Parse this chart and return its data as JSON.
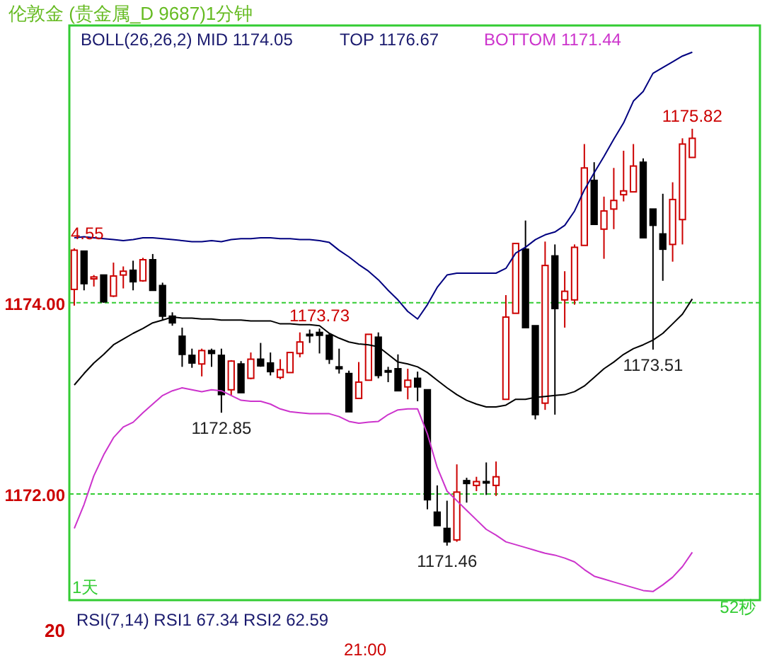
{
  "chart_data": {
    "type": "candlestick",
    "title": "伦敦金 (贵金属_D 9687)1分钟",
    "categories": [
      null,
      null,
      null,
      null,
      null,
      null,
      null,
      null,
      null,
      null,
      null,
      null,
      null,
      null,
      null,
      null,
      null,
      null,
      null,
      null,
      null,
      null,
      null,
      null,
      null,
      null,
      null,
      null,
      null,
      null,
      null,
      null,
      null,
      null,
      null,
      null,
      null,
      null,
      null,
      null,
      null,
      null,
      null,
      null,
      null,
      null,
      null,
      null,
      null,
      null,
      null,
      null,
      null,
      null,
      null,
      null,
      null,
      null,
      null,
      null,
      null,
      null,
      null,
      null
    ],
    "ohlc": [
      [
        1174.14,
        1174.57,
        1173.97,
        1174.55
      ],
      [
        1174.54,
        1174.54,
        1174.13,
        1174.2
      ],
      [
        1174.25,
        1174.29,
        1174.17,
        1174.27
      ],
      [
        1174.29,
        1174.29,
        1174.0,
        1174.01
      ],
      [
        1174.07,
        1174.42,
        1174.06,
        1174.28
      ],
      [
        1174.29,
        1174.38,
        1174.15,
        1174.33
      ],
      [
        1174.34,
        1174.44,
        1174.13,
        1174.22
      ],
      [
        1174.23,
        1174.47,
        1174.22,
        1174.45
      ],
      [
        1174.45,
        1174.51,
        1174.13,
        1174.13
      ],
      [
        1174.18,
        1174.21,
        1173.82,
        1173.86
      ],
      [
        1173.86,
        1173.9,
        1173.76,
        1173.79
      ],
      [
        1173.65,
        1173.74,
        1173.33,
        1173.46
      ],
      [
        1173.45,
        1173.52,
        1173.32,
        1173.37
      ],
      [
        1173.36,
        1173.52,
        1173.23,
        1173.5
      ],
      [
        1173.5,
        1173.52,
        1173.33,
        1173.47
      ],
      [
        1173.45,
        1173.52,
        1172.85,
        1173.04
      ],
      [
        1173.09,
        1173.4,
        1173.03,
        1173.39
      ],
      [
        1173.36,
        1173.39,
        1173.06,
        1173.06
      ],
      [
        1173.21,
        1173.48,
        1173.2,
        1173.41
      ],
      [
        1173.41,
        1173.58,
        1173.33,
        1173.34
      ],
      [
        1173.37,
        1173.48,
        1173.24,
        1173.28
      ],
      [
        1173.22,
        1173.41,
        1173.2,
        1173.3
      ],
      [
        1173.27,
        1173.48,
        1173.27,
        1173.48
      ],
      [
        1173.47,
        1173.69,
        1173.43,
        1173.59
      ],
      [
        1173.67,
        1173.72,
        1173.58,
        1173.66
      ],
      [
        1173.69,
        1173.73,
        1173.47,
        1173.66
      ],
      [
        1173.66,
        1173.68,
        1173.36,
        1173.41
      ],
      [
        1173.33,
        1173.52,
        1173.26,
        1173.31
      ],
      [
        1173.26,
        1173.29,
        1172.86,
        1172.86
      ],
      [
        1173.0,
        1173.38,
        1173.0,
        1173.17
      ],
      [
        1173.19,
        1173.67,
        1173.19,
        1173.67
      ],
      [
        1173.64,
        1173.69,
        1173.21,
        1173.24
      ],
      [
        1173.29,
        1173.33,
        1173.17,
        1173.28
      ],
      [
        1173.31,
        1173.46,
        1173.08,
        1173.08
      ],
      [
        1173.12,
        1173.31,
        1172.99,
        1173.19
      ],
      [
        1173.21,
        1173.28,
        1172.97,
        1173.12
      ],
      [
        1173.09,
        1173.09,
        1171.84,
        1171.94
      ],
      [
        1171.81,
        1172.09,
        1171.67,
        1171.67
      ],
      [
        1171.64,
        1171.93,
        1171.46,
        1171.5
      ],
      [
        1171.52,
        1172.31,
        1171.5,
        1172.02
      ],
      [
        1172.14,
        1172.17,
        1171.91,
        1172.11
      ],
      [
        1172.09,
        1172.18,
        1172.03,
        1172.13
      ],
      [
        1172.13,
        1172.33,
        1171.99,
        1172.12
      ],
      [
        1172.09,
        1172.34,
        1171.98,
        1172.18
      ],
      [
        1172.99,
        1174.08,
        1172.99,
        1173.85
      ],
      [
        1173.89,
        1174.62,
        1173.89,
        1174.62
      ],
      [
        1174.56,
        1174.86,
        1173.74,
        1173.74
      ],
      [
        1173.76,
        1173.76,
        1172.78,
        1172.83
      ],
      [
        1172.95,
        1174.64,
        1172.88,
        1174.39
      ],
      [
        1174.49,
        1174.61,
        1172.83,
        1173.94
      ],
      [
        1174.03,
        1174.33,
        1173.74,
        1174.12
      ],
      [
        1174.03,
        1174.61,
        1173.98,
        1174.58
      ],
      [
        1174.6,
        1175.66,
        1174.6,
        1175.41
      ],
      [
        1175.28,
        1175.47,
        1174.82,
        1174.82
      ],
      [
        1174.77,
        1175.11,
        1174.46,
        1174.96
      ],
      [
        1174.98,
        1175.41,
        1174.77,
        1175.07
      ],
      [
        1175.13,
        1175.59,
        1175.06,
        1175.17
      ],
      [
        1175.16,
        1175.66,
        1175.16,
        1175.43
      ],
      [
        1175.47,
        1175.51,
        1174.68,
        1174.68
      ],
      [
        1174.98,
        1174.98,
        1173.51,
        1174.81
      ],
      [
        1174.72,
        1175.14,
        1174.23,
        1174.56
      ],
      [
        1174.61,
        1175.26,
        1174.43,
        1175.08
      ],
      [
        1174.87,
        1175.72,
        1174.61,
        1175.66
      ],
      [
        1175.52,
        1175.82,
        1175.52,
        1175.72
      ]
    ],
    "series": [
      {
        "type": "line",
        "color": "#000080",
        "values": [
          1174.68,
          1174.69,
          1174.68,
          1174.67,
          1174.66,
          1174.65,
          1174.66,
          1174.68,
          1174.68,
          1174.67,
          1174.66,
          1174.65,
          1174.64,
          1174.64,
          1174.65,
          1174.64,
          1174.66,
          1174.67,
          1174.67,
          1174.68,
          1174.68,
          1174.67,
          1174.67,
          1174.66,
          1174.66,
          1174.65,
          1174.63,
          1174.55,
          1174.48,
          1174.4,
          1174.33,
          1174.24,
          1174.13,
          1174.03,
          1173.91,
          1173.83,
          1173.98,
          1174.16,
          1174.29,
          1174.31,
          1174.31,
          1174.31,
          1174.31,
          1174.31,
          1174.36,
          1174.52,
          1174.58,
          1174.66,
          1174.71,
          1174.74,
          1174.81,
          1174.96,
          1175.18,
          1175.36,
          1175.53,
          1175.71,
          1175.88,
          1176.11,
          1176.21,
          1176.4,
          1176.46,
          1176.52,
          1176.58,
          1176.62
        ]
      },
      {
        "type": "line",
        "color": "#000000",
        "values": [
          1173.14,
          1173.26,
          1173.37,
          1173.46,
          1173.56,
          1173.62,
          1173.68,
          1173.73,
          1173.79,
          1173.82,
          1173.85,
          1173.84,
          1173.84,
          1173.83,
          1173.83,
          1173.82,
          1173.82,
          1173.82,
          1173.81,
          1173.81,
          1173.81,
          1173.78,
          1173.78,
          1173.77,
          1173.77,
          1173.76,
          1173.68,
          1173.63,
          1173.59,
          1173.57,
          1173.56,
          1173.54,
          1173.46,
          1173.38,
          1173.36,
          1173.33,
          1173.27,
          1173.19,
          1173.11,
          1173.04,
          1172.98,
          1172.94,
          1172.91,
          1172.91,
          1172.93,
          1172.99,
          1172.99,
          1173.01,
          1173.02,
          1173.03,
          1173.04,
          1173.07,
          1173.13,
          1173.22,
          1173.31,
          1173.38,
          1173.46,
          1173.52,
          1173.56,
          1173.61,
          1173.68,
          1173.78,
          1173.88,
          1174.04
        ]
      },
      {
        "type": "line",
        "color": "#cc33cc",
        "values": [
          1171.64,
          1171.89,
          1172.19,
          1172.41,
          1172.59,
          1172.7,
          1172.75,
          1172.85,
          1172.94,
          1173.03,
          1173.08,
          1173.11,
          1173.09,
          1173.07,
          1173.09,
          1173.08,
          1173.03,
          1172.98,
          1172.97,
          1172.97,
          1172.94,
          1172.89,
          1172.86,
          1172.85,
          1172.84,
          1172.84,
          1172.84,
          1172.81,
          1172.76,
          1172.74,
          1172.75,
          1172.76,
          1172.83,
          1172.88,
          1172.89,
          1172.89,
          1172.63,
          1172.28,
          1172.03,
          1171.93,
          1171.83,
          1171.73,
          1171.63,
          1171.57,
          1171.5,
          1171.47,
          1171.44,
          1171.41,
          1171.38,
          1171.36,
          1171.33,
          1171.29,
          1171.21,
          1171.14,
          1171.11,
          1171.08,
          1171.05,
          1171.02,
          1170.99,
          1170.98,
          1171.05,
          1171.13,
          1171.24,
          1171.39
        ]
      }
    ],
    "ylim": [
      1170.89,
      1176.9
    ],
    "yticks": [
      {
        "value": 1172,
        "label": "1172.00"
      },
      {
        "value": 1174,
        "label": "1174.00"
      }
    ],
    "grid": "y",
    "annotations": [
      "BOLL(26,26,2)  MID  1174.05",
      "TOP  1176.67",
      "BOTTOM  1171.44",
      "4.55",
      {
        "text": "1173.73",
        "y": 1173.73
      },
      {
        "text": "1172.85",
        "y": 1172.85
      },
      {
        "text": "1171.46",
        "y": 1171.46
      },
      {
        "text": "1173.51",
        "y": 1173.51
      },
      {
        "text": "1175.82",
        "y": 1175.82
      },
      "1天",
      "52秒",
      "RSI(7,14)  RSI1  67.34  RSI2  62.59",
      "20",
      "21:00"
    ]
  }
}
